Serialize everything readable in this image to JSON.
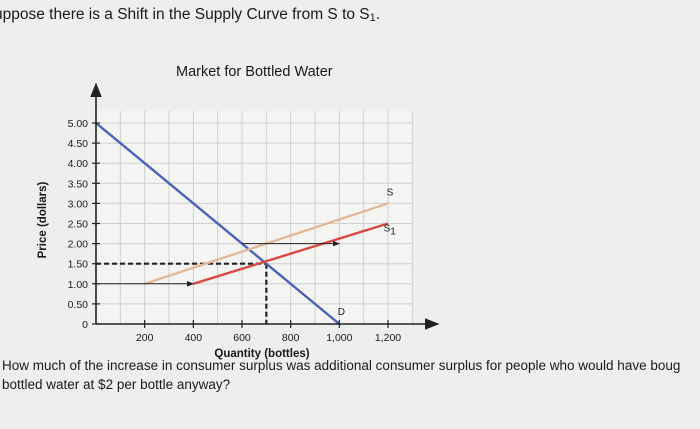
{
  "header": {
    "question_prefix": "uppose there is a Shift in the Supply Curve from S to S",
    "question_sub": "1",
    "question_suffix": "."
  },
  "question": {
    "line1": "How much of the increase in consumer surplus was additional consumer surplus for people who would have boug",
    "line2": "bottled water at $2 per bottle anyway?"
  },
  "chart_data": {
    "type": "line",
    "title": "Market for Bottled Water",
    "xlabel": "Quantity (bottles)",
    "ylabel": "Price (dollars)",
    "xlim": [
      0,
      1300
    ],
    "ylim": [
      0,
      5.3
    ],
    "x_ticks": [
      200,
      400,
      600,
      800,
      1000,
      1200
    ],
    "x_tick_labels": [
      "200",
      "400",
      "600",
      "800",
      "1,000",
      "1,200"
    ],
    "y_ticks": [
      0,
      0.5,
      1.0,
      1.5,
      2.0,
      2.5,
      3.0,
      3.5,
      4.0,
      4.5,
      5.0
    ],
    "y_tick_labels": [
      "0",
      "0.50",
      "1.00",
      "1.50",
      "2.00",
      "2.50",
      "3.00",
      "3.50",
      "4.00",
      "4.50",
      "5.00"
    ],
    "grid": true,
    "series": [
      {
        "name": "D",
        "color": "#4a62b8",
        "x": [
          0,
          1000
        ],
        "y": [
          5.0,
          0.0
        ]
      },
      {
        "name": "S",
        "color": "#e3b99b",
        "x": [
          200,
          1200
        ],
        "y": [
          1.0,
          3.0
        ]
      },
      {
        "name": "S1",
        "color": "#d94a45",
        "x": [
          400,
          1200
        ],
        "y": [
          1.0,
          2.5
        ]
      }
    ],
    "curve_labels": {
      "D": "D",
      "S": "S",
      "S1": "S",
      "S1_sub": "1"
    },
    "guides": {
      "dashed_price": 1.5,
      "dashed_quantity": 700,
      "arrows": [
        {
          "from": [
            0,
            1.0
          ],
          "to": [
            400,
            1.0
          ]
        },
        {
          "from": [
            600,
            2.0
          ],
          "to": [
            1000,
            2.0
          ]
        }
      ]
    }
  }
}
